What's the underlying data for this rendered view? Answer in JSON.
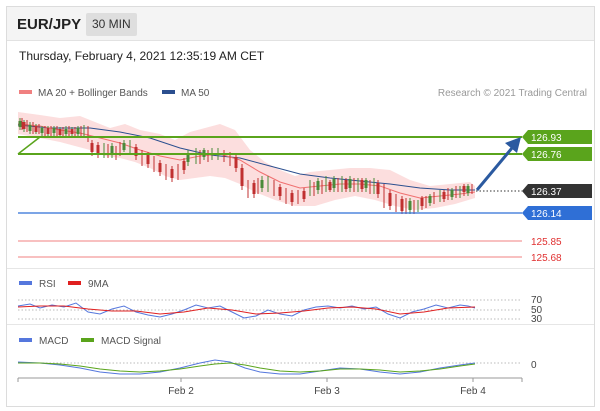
{
  "header": {
    "symbol": "EUR/JPY",
    "interval": "30 MIN"
  },
  "timestamp": "Thursday, February 4, 2021 12:35:19 AM CET",
  "legend": {
    "bollinger": "MA 20 + Bollinger Bands",
    "ma50": "MA 50",
    "credit": "Research © 2021 Trading Central"
  },
  "levels": {
    "resistance_2": "126.93",
    "resistance_1": "126.76",
    "last": "126.37",
    "support_1": "126.14",
    "support_2": "125.85",
    "support_3": "125.68"
  },
  "rsi_panel": {
    "label": "RSI",
    "ma_label": "9MA",
    "ticks": [
      "70",
      "50",
      "30"
    ]
  },
  "macd_panel": {
    "label": "MACD",
    "signal_label": "MACD Signal",
    "tick": "0"
  },
  "x_axis": {
    "labels": [
      "Feb 2",
      "Feb 3",
      "Feb 4"
    ]
  },
  "colors": {
    "resistance": "#5aa41c",
    "support": "#2f6fd6",
    "weak_support": "#f08080",
    "last_price": "#333333",
    "arrow": "#2b5aa0",
    "ma20": "#f07070",
    "ma50": "#2b4f8f",
    "band": "#fbd8d8"
  }
}
